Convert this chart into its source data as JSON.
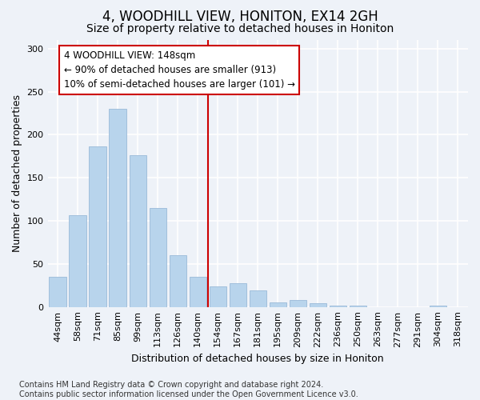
{
  "title": "4, WOODHILL VIEW, HONITON, EX14 2GH",
  "subtitle": "Size of property relative to detached houses in Honiton",
  "xlabel": "Distribution of detached houses by size in Honiton",
  "ylabel": "Number of detached properties",
  "categories": [
    "44sqm",
    "58sqm",
    "71sqm",
    "85sqm",
    "99sqm",
    "113sqm",
    "126sqm",
    "140sqm",
    "154sqm",
    "167sqm",
    "181sqm",
    "195sqm",
    "209sqm",
    "222sqm",
    "236sqm",
    "250sqm",
    "263sqm",
    "277sqm",
    "291sqm",
    "304sqm",
    "318sqm"
  ],
  "values": [
    35,
    107,
    186,
    230,
    176,
    115,
    60,
    35,
    24,
    28,
    19,
    5,
    8,
    4,
    2,
    2,
    0,
    0,
    0,
    2,
    0
  ],
  "bar_color": "#b8d4ec",
  "bar_edge_color": "#9bbad8",
  "vline_x": 7.5,
  "vline_color": "#cc0000",
  "annotation_text": "4 WOODHILL VIEW: 148sqm\n← 90% of detached houses are smaller (913)\n10% of semi-detached houses are larger (101) →",
  "annotation_box_color": "#ffffff",
  "annotation_box_edge": "#cc0000",
  "ylim": [
    0,
    310
  ],
  "yticks": [
    0,
    50,
    100,
    150,
    200,
    250,
    300
  ],
  "bg_color": "#eef2f8",
  "grid_color": "#ffffff",
  "footer": "Contains HM Land Registry data © Crown copyright and database right 2024.\nContains public sector information licensed under the Open Government Licence v3.0.",
  "title_fontsize": 12,
  "subtitle_fontsize": 10,
  "axis_label_fontsize": 9,
  "tick_fontsize": 8,
  "annotation_fontsize": 8.5,
  "footer_fontsize": 7
}
